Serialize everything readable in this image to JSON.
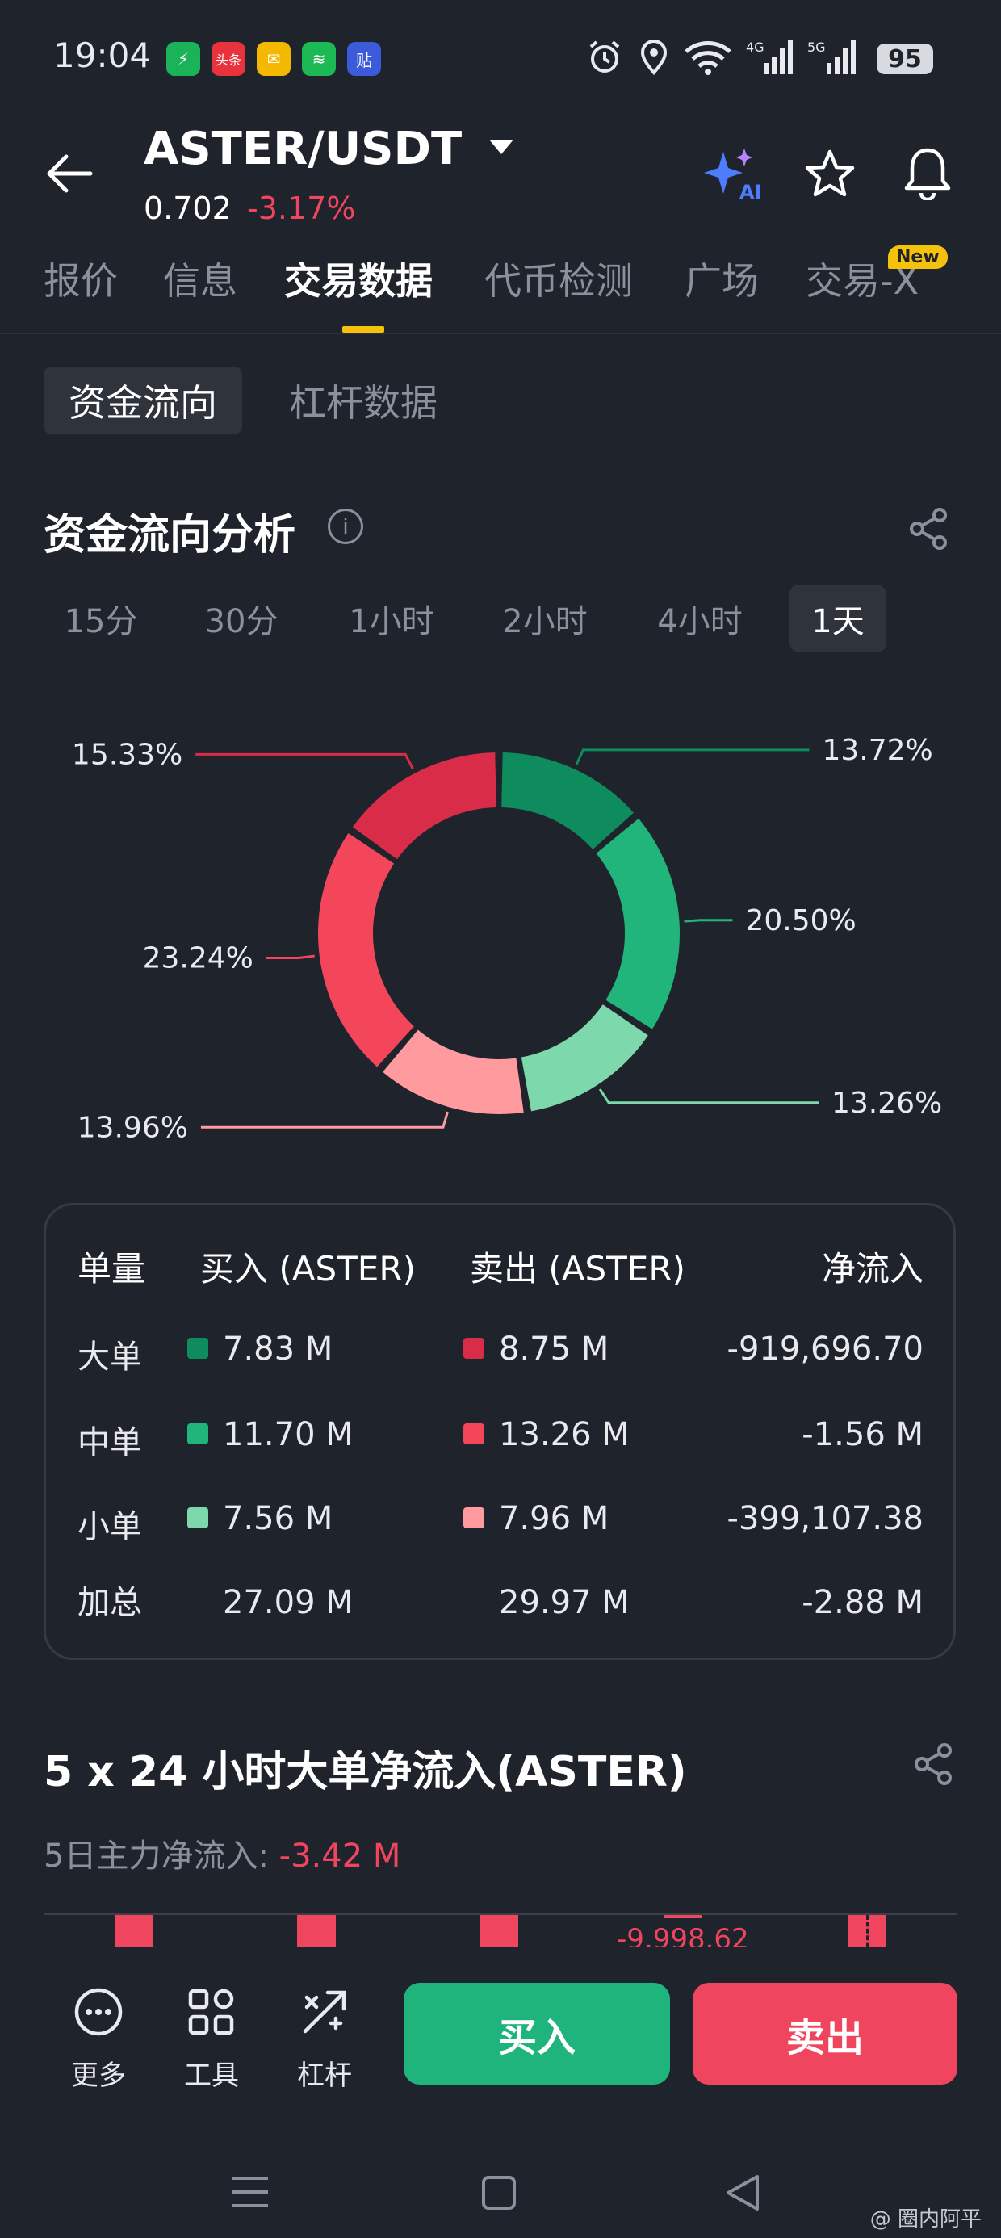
{
  "status_bar": {
    "time": "19:04",
    "battery": "95",
    "network1": "4G",
    "network2": "5G"
  },
  "header": {
    "pair": "ASTER/USDT",
    "price": "0.702",
    "change": "-3.17%"
  },
  "tabs": [
    {
      "label": "报价"
    },
    {
      "label": "信息"
    },
    {
      "label": "交易数据"
    },
    {
      "label": "代币检测"
    },
    {
      "label": "广场"
    },
    {
      "label": "交易-X"
    }
  ],
  "new_badge": "New",
  "subtabs": {
    "active": "资金流向",
    "inactive": "杠杆数据"
  },
  "fund_flow": {
    "title": "资金流向分析",
    "periods": [
      "15分",
      "30分",
      "1小时",
      "2小时",
      "4小时",
      "1天"
    ],
    "active_period": "1天"
  },
  "chart_data": {
    "type": "pie",
    "slices": [
      {
        "label": "13.72%",
        "value": 13.72,
        "color": "#0f8c5e"
      },
      {
        "label": "20.50%",
        "value": 20.5,
        "color": "#21b57c"
      },
      {
        "label": "13.26%",
        "value": 13.26,
        "color": "#7dd8ac"
      },
      {
        "label": "13.96%",
        "value": 13.96,
        "color": "#ff9b9f"
      },
      {
        "label": "23.24%",
        "value": 23.24,
        "color": "#f3465a"
      },
      {
        "label": "15.33%",
        "value": 15.33,
        "color": "#d82c49"
      }
    ]
  },
  "table": {
    "headers": {
      "size": "单量",
      "buy": "买入 (ASTER)",
      "sell": "卖出 (ASTER)",
      "net": "净流入"
    },
    "rows": [
      {
        "label": "大单",
        "buy": "7.83 M",
        "sell": "8.75 M",
        "net": "-919,696.70",
        "buy_color": "#0f8c5e",
        "sell_color": "#d82c49"
      },
      {
        "label": "中单",
        "buy": "11.70 M",
        "sell": "13.26 M",
        "net": "-1.56 M",
        "buy_color": "#21b57c",
        "sell_color": "#f3465a"
      },
      {
        "label": "小单",
        "buy": "7.56 M",
        "sell": "7.96 M",
        "net": "-399,107.38",
        "buy_color": "#7dd8ac",
        "sell_color": "#ff9b9f"
      },
      {
        "label": "加总",
        "buy": "27.09 M",
        "sell": "29.97 M",
        "net": "-2.88 M"
      }
    ]
  },
  "large_order": {
    "title": "5 x 24 小时大单净流入(ASTER)",
    "main_label": "5日主力净流入: ",
    "main_value": "-3.42 M",
    "bar_label": "-9,998.62"
  },
  "bottom_bar": {
    "more": "更多",
    "tools": "工具",
    "leverage": "杠杆",
    "buy": "买入",
    "sell": "卖出"
  },
  "watermark": "@ 圈内阿平",
  "colors": {
    "bg": "#1f232b",
    "up": "#20b47d",
    "down": "#f0455e",
    "accent": "#f5c20b"
  }
}
